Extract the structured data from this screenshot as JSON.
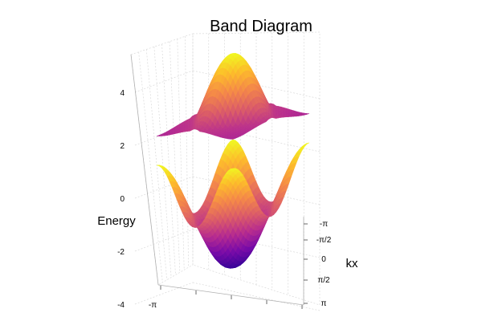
{
  "chart_data": {
    "type": "surface",
    "title": "Band Diagram",
    "zlabel": "Energy",
    "xlabel": "kx",
    "z_ticks": [
      "-4",
      "-2",
      "0",
      "2",
      "4"
    ],
    "z_tick_values": [
      -4,
      -2,
      0,
      2,
      4
    ],
    "kx_ticks": [
      "-π",
      "-π/2",
      "0",
      "π/2",
      "π"
    ],
    "ky_ticks": [
      "-π"
    ],
    "zlim": [
      -4.6,
      5.6
    ],
    "colorscale": [
      "#0d0887",
      "#3b049a",
      "#7a0ba8",
      "#b72c8f",
      "#db5c68",
      "#f48849",
      "#fdbb2b",
      "#f0f921"
    ],
    "series": [
      {
        "band": "upper",
        "z_min": 1.5,
        "z_max": 5.5,
        "z_edge": 3.3
      },
      {
        "band": "lower",
        "z_min": -2.6,
        "z_max": 1.7,
        "z_edge": -1.5
      }
    ]
  }
}
